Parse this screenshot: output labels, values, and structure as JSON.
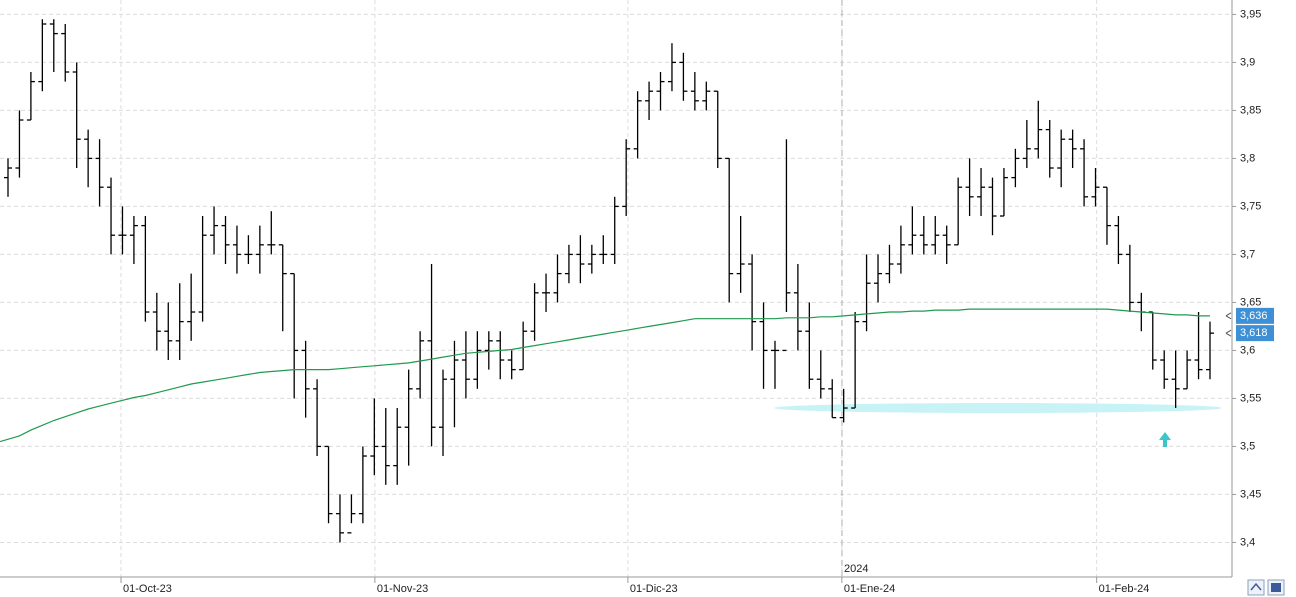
{
  "chart_data": {
    "type": "ohlc",
    "annotations": [
      {
        "text": "2024"
      }
    ],
    "categories": [
      null,
      null,
      null,
      null,
      null,
      null,
      null,
      null,
      null,
      null,
      null,
      null,
      null,
      null,
      null,
      null,
      null,
      null,
      null,
      null,
      null,
      null,
      null,
      null,
      null,
      null,
      null,
      null,
      null,
      null,
      null,
      null,
      null,
      null,
      null,
      null,
      null,
      null,
      null,
      null,
      null,
      null,
      null,
      null,
      null,
      null,
      null,
      null,
      null,
      null,
      null,
      null,
      null,
      null,
      null,
      null,
      null,
      null,
      null,
      null,
      null,
      null,
      null,
      null,
      null,
      null,
      null,
      null,
      null,
      null,
      null,
      null,
      null,
      null,
      null,
      null,
      null,
      null,
      null,
      null,
      null,
      null,
      null,
      null,
      null,
      null,
      null,
      null,
      null,
      null,
      null,
      null,
      null,
      null,
      null,
      null,
      null,
      null,
      null,
      null,
      null,
      null,
      null,
      null,
      null,
      null
    ],
    "xticks": [
      {
        "value": 9.87,
        "label": "01-Oct-23"
      },
      {
        "value": 32.05,
        "label": "01-Nov-23"
      },
      {
        "value": 54.15,
        "label": "01-Dic-23"
      },
      {
        "value": 72.84,
        "label": "01-Ene-24"
      },
      {
        "value": 95.1,
        "label": "01-Feb-24"
      }
    ],
    "ylim": [
      3.364,
      3.965
    ],
    "yticks": [
      {
        "value": 3.4,
        "label": "3,4"
      },
      {
        "value": 3.45,
        "label": "3,45"
      },
      {
        "value": 3.5,
        "label": "3,5"
      },
      {
        "value": 3.55,
        "label": "3,55"
      },
      {
        "value": 3.6,
        "label": "3,6"
      },
      {
        "value": 3.65,
        "label": "3,65"
      },
      {
        "value": 3.7,
        "label": "3,7"
      },
      {
        "value": 3.75,
        "label": "3,75"
      },
      {
        "value": 3.8,
        "label": "3,8"
      },
      {
        "value": 3.85,
        "label": "3,85"
      },
      {
        "value": 3.9,
        "label": "3,9"
      },
      {
        "value": 3.95,
        "label": "3,95"
      }
    ],
    "grid": true,
    "ohlc": {
      "color": "#000000",
      "open": [
        3.78,
        3.79,
        3.84,
        3.88,
        3.94,
        3.93,
        3.89,
        3.82,
        3.8,
        3.77,
        3.72,
        3.72,
        3.73,
        3.64,
        3.62,
        3.61,
        3.63,
        3.64,
        3.72,
        3.73,
        3.71,
        3.7,
        3.7,
        3.71,
        3.71,
        3.68,
        3.6,
        3.56,
        3.5,
        3.43,
        3.41,
        3.43,
        3.49,
        3.5,
        3.48,
        3.52,
        3.56,
        3.61,
        3.52,
        3.57,
        3.59,
        3.57,
        3.6,
        3.61,
        3.59,
        3.58,
        3.62,
        3.66,
        3.66,
        3.68,
        3.7,
        3.69,
        3.7,
        3.7,
        3.75,
        3.81,
        3.86,
        3.87,
        3.88,
        3.9,
        3.87,
        3.86,
        3.87,
        3.8,
        3.68,
        3.69,
        3.63,
        3.6,
        3.6,
        3.66,
        3.62,
        3.57,
        3.56,
        3.53,
        3.54,
        3.63,
        3.67,
        3.68,
        3.69,
        3.71,
        3.72,
        3.71,
        3.72,
        3.71,
        3.77,
        3.76,
        3.77,
        3.74,
        3.78,
        3.8,
        3.81,
        3.83,
        3.79,
        3.82,
        3.81,
        3.76,
        3.77,
        3.73,
        3.7,
        3.65,
        3.64,
        3.59,
        3.57,
        3.56,
        3.59,
        3.58
      ],
      "high": [
        3.8,
        3.85,
        3.89,
        3.945,
        3.945,
        3.94,
        3.9,
        3.83,
        3.82,
        3.78,
        3.75,
        3.74,
        3.74,
        3.66,
        3.65,
        3.67,
        3.68,
        3.74,
        3.75,
        3.74,
        3.73,
        3.72,
        3.73,
        3.745,
        3.71,
        3.68,
        3.61,
        3.57,
        3.5,
        3.45,
        3.45,
        3.5,
        3.55,
        3.54,
        3.54,
        3.58,
        3.62,
        3.69,
        3.58,
        3.61,
        3.62,
        3.62,
        3.62,
        3.62,
        3.6,
        3.63,
        3.67,
        3.68,
        3.7,
        3.71,
        3.72,
        3.71,
        3.72,
        3.76,
        3.82,
        3.87,
        3.88,
        3.89,
        3.92,
        3.91,
        3.89,
        3.88,
        3.87,
        3.8,
        3.74,
        3.7,
        3.65,
        3.61,
        3.82,
        3.69,
        3.65,
        3.6,
        3.57,
        3.56,
        3.64,
        3.7,
        3.7,
        3.71,
        3.73,
        3.75,
        3.74,
        3.74,
        3.73,
        3.78,
        3.8,
        3.79,
        3.78,
        3.79,
        3.81,
        3.84,
        3.86,
        3.84,
        3.83,
        3.83,
        3.82,
        3.79,
        3.77,
        3.74,
        3.71,
        3.66,
        3.64,
        3.6,
        3.6,
        3.6,
        3.64,
        3.63
      ],
      "low": [
        3.76,
        3.78,
        3.84,
        3.87,
        3.89,
        3.88,
        3.79,
        3.77,
        3.75,
        3.7,
        3.7,
        3.69,
        3.63,
        3.6,
        3.59,
        3.59,
        3.61,
        3.63,
        3.7,
        3.69,
        3.68,
        3.69,
        3.68,
        3.7,
        3.62,
        3.55,
        3.53,
        3.49,
        3.42,
        3.4,
        3.42,
        3.42,
        3.47,
        3.46,
        3.46,
        3.48,
        3.55,
        3.5,
        3.49,
        3.52,
        3.55,
        3.56,
        3.58,
        3.57,
        3.57,
        3.58,
        3.61,
        3.64,
        3.65,
        3.67,
        3.67,
        3.68,
        3.69,
        3.69,
        3.74,
        3.8,
        3.84,
        3.85,
        3.87,
        3.86,
        3.85,
        3.85,
        3.79,
        3.65,
        3.66,
        3.6,
        3.56,
        3.56,
        3.64,
        3.6,
        3.56,
        3.55,
        3.53,
        3.525,
        3.54,
        3.62,
        3.65,
        3.67,
        3.68,
        3.7,
        3.7,
        3.7,
        3.69,
        3.71,
        3.74,
        3.74,
        3.72,
        3.74,
        3.77,
        3.79,
        3.8,
        3.78,
        3.77,
        3.79,
        3.75,
        3.75,
        3.71,
        3.69,
        3.64,
        3.62,
        3.58,
        3.56,
        3.54,
        3.56,
        3.57,
        3.57
      ],
      "close": [
        3.79,
        3.84,
        3.88,
        3.94,
        3.93,
        3.89,
        3.82,
        3.8,
        3.77,
        3.72,
        3.72,
        3.73,
        3.64,
        3.62,
        3.61,
        3.63,
        3.64,
        3.72,
        3.73,
        3.71,
        3.7,
        3.7,
        3.71,
        3.71,
        3.68,
        3.6,
        3.56,
        3.5,
        3.43,
        3.41,
        3.43,
        3.49,
        3.5,
        3.48,
        3.52,
        3.56,
        3.61,
        3.52,
        3.57,
        3.59,
        3.57,
        3.6,
        3.61,
        3.59,
        3.58,
        3.62,
        3.66,
        3.66,
        3.68,
        3.7,
        3.69,
        3.7,
        3.7,
        3.75,
        3.81,
        3.86,
        3.87,
        3.88,
        3.9,
        3.87,
        3.86,
        3.87,
        3.8,
        3.68,
        3.69,
        3.63,
        3.6,
        3.6,
        3.66,
        3.62,
        3.57,
        3.56,
        3.53,
        3.54,
        3.63,
        3.67,
        3.68,
        3.69,
        3.71,
        3.72,
        3.71,
        3.72,
        3.71,
        3.77,
        3.76,
        3.77,
        3.74,
        3.78,
        3.8,
        3.81,
        3.83,
        3.79,
        3.82,
        3.81,
        3.76,
        3.77,
        3.73,
        3.7,
        3.65,
        3.64,
        3.59,
        3.57,
        3.56,
        3.59,
        3.58,
        3.618
      ]
    },
    "series": [
      {
        "color": "#1f9a4f",
        "values": [
          3.505,
          3.511,
          3.517,
          3.522,
          3.527,
          3.531,
          3.535,
          3.539,
          3.542,
          3.545,
          3.548,
          3.551,
          3.553,
          3.556,
          3.559,
          3.562,
          3.565,
          3.567,
          3.569,
          3.571,
          3.573,
          3.575,
          3.577,
          3.578,
          3.579,
          3.58,
          3.58,
          3.58,
          3.58,
          3.581,
          3.582,
          3.583,
          3.584,
          3.585,
          3.586,
          3.587,
          3.589,
          3.591,
          3.593,
          3.595,
          3.597,
          3.598,
          3.599,
          3.6,
          3.601,
          3.603,
          3.605,
          3.607,
          3.609,
          3.611,
          3.613,
          3.615,
          3.617,
          3.619,
          3.621,
          3.623,
          3.625,
          3.627,
          3.629,
          3.631,
          3.633,
          3.633,
          3.633,
          3.633,
          3.633,
          3.633,
          3.633,
          3.633,
          3.634,
          3.634,
          3.634,
          3.635,
          3.635,
          3.636,
          3.637,
          3.638,
          3.639,
          3.64,
          3.64,
          3.641,
          3.641,
          3.642,
          3.642,
          3.642,
          3.643,
          3.643,
          3.643,
          3.643,
          3.643,
          3.643,
          3.643,
          3.643,
          3.643,
          3.643,
          3.643,
          3.643,
          3.643,
          3.642,
          3.641,
          3.64,
          3.639,
          3.638,
          3.637,
          3.637,
          3.636,
          3.636
        ]
      }
    ],
    "last_value_labels": [
      {
        "value": 3.636,
        "label": "3,636"
      },
      {
        "value": 3.618,
        "label": "3,618"
      }
    ],
    "last_label_color": "#3d8fd6"
  }
}
